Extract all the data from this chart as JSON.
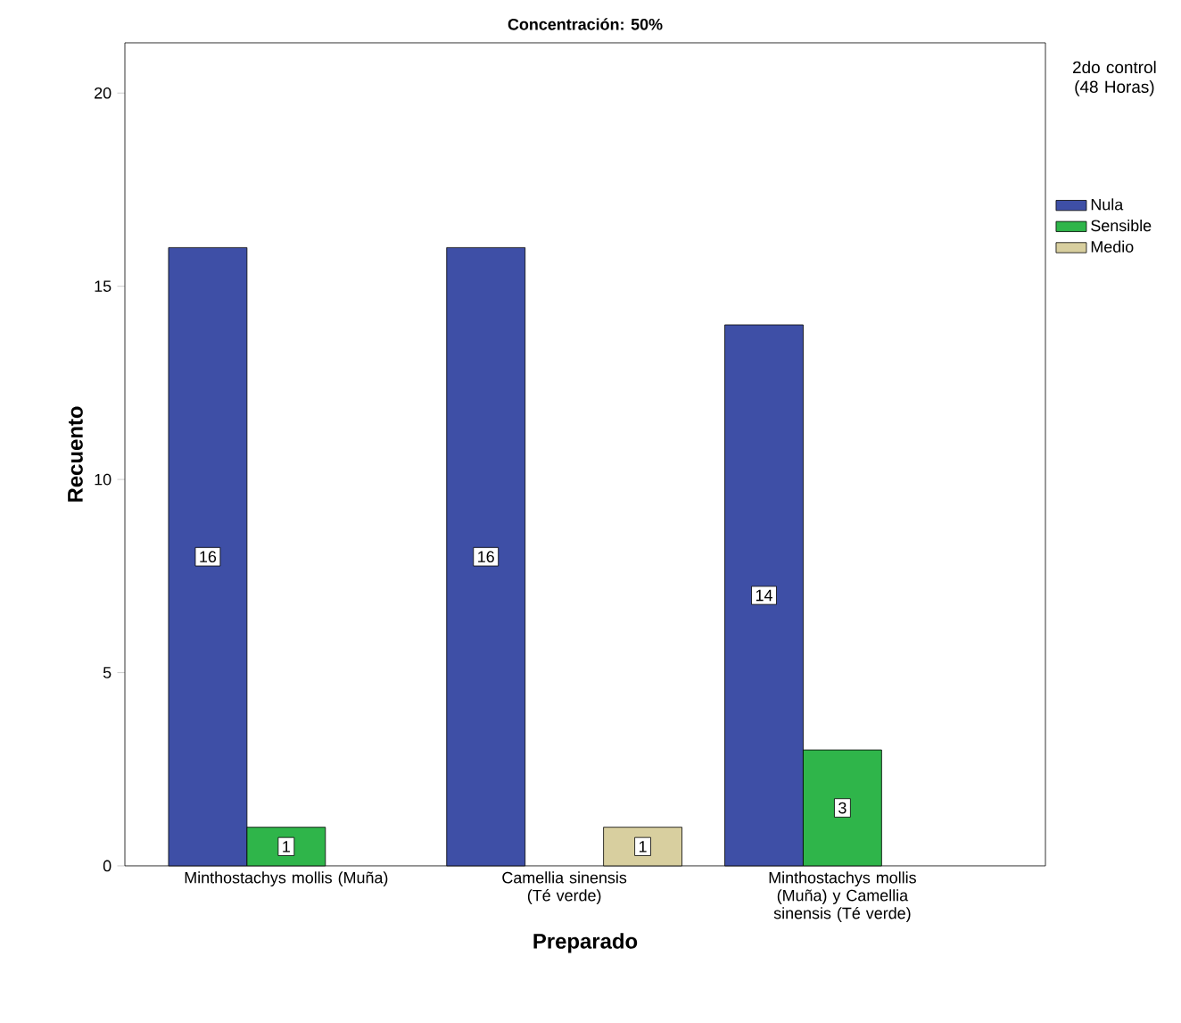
{
  "chart_data": {
    "type": "bar",
    "title": "Concentración: 50%",
    "xlabel": "Preparado",
    "ylabel": "Recuento",
    "legend_title": "2do control (48 Horas)",
    "categories": [
      "Minthostachys mollis (Muña)",
      "Camellia sinensis (Té verde)",
      "Minthostachys mollis (Muña) y Camellia sinensis (Té verde)"
    ],
    "series": [
      {
        "name": "Nula",
        "color": "#3e4fa6",
        "values": [
          16,
          16,
          14
        ]
      },
      {
        "name": "Sensible",
        "color": "#2fb54a",
        "values": [
          1,
          null,
          3
        ]
      },
      {
        "name": "Medio",
        "color": "#d8cf9f",
        "values": [
          null,
          1,
          null
        ]
      }
    ],
    "ylim": [
      0,
      21.3
    ],
    "yticks": [
      0,
      5,
      10,
      15,
      20
    ],
    "grid": false,
    "legend": "top right",
    "data_labels": true
  }
}
